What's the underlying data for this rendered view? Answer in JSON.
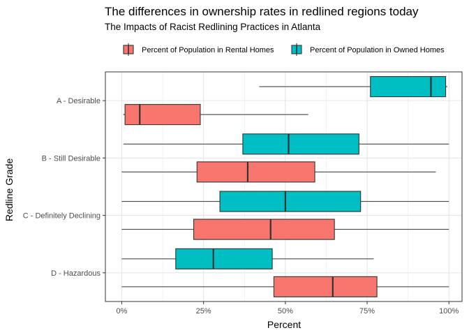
{
  "chart_data": {
    "type": "boxplot-horizontal",
    "title": "The differences in ownership rates in redlined regions today",
    "subtitle": "The Impacts of Racist Redlining Practices in Atlanta",
    "xlabel": "Percent",
    "ylabel": "Redline Grade",
    "xlim": [
      -5,
      104
    ],
    "x_ticks": [
      {
        "value": 0,
        "label": "0%"
      },
      {
        "value": 25,
        "label": "25%"
      },
      {
        "value": 50,
        "label": "50%"
      },
      {
        "value": 75,
        "label": "75%"
      },
      {
        "value": 100,
        "label": "100%"
      }
    ],
    "categories": [
      "A - Desirable",
      "B - Still Desirable",
      "C - Definitely Declining",
      "D - Hazardous"
    ],
    "legend_position": "top",
    "series": [
      {
        "name": "Percent of Population in Rental Homes",
        "color": "#F8766D",
        "boxes": [
          {
            "category": "A - Desirable",
            "min": 0.5,
            "q1": 1,
            "median": 5.5,
            "q3": 24,
            "max": 57
          },
          {
            "category": "B - Still Desirable",
            "min": 0,
            "q1": 23,
            "median": 38.5,
            "q3": 59,
            "max": 96
          },
          {
            "category": "C - Definitely Declining",
            "min": 0,
            "q1": 22,
            "median": 45.5,
            "q3": 65,
            "max": 100
          },
          {
            "category": "D - Hazardous",
            "min": 0,
            "q1": 46.5,
            "median": 64.5,
            "q3": 78,
            "max": 100
          }
        ]
      },
      {
        "name": "Percent of Population in Owned Homes",
        "color": "#00BFC4",
        "boxes": [
          {
            "category": "A - Desirable",
            "min": 42,
            "q1": 76,
            "median": 94.5,
            "q3": 99,
            "max": 99.5
          },
          {
            "category": "B - Still Desirable",
            "min": 0.5,
            "q1": 37,
            "median": 51,
            "q3": 72.5,
            "max": 100
          },
          {
            "category": "C - Definitely Declining",
            "min": 0,
            "q1": 30,
            "median": 50,
            "q3": 73,
            "max": 100
          },
          {
            "category": "D - Hazardous",
            "min": 0,
            "q1": 16.5,
            "median": 28,
            "q3": 46,
            "max": 77
          }
        ]
      }
    ]
  }
}
